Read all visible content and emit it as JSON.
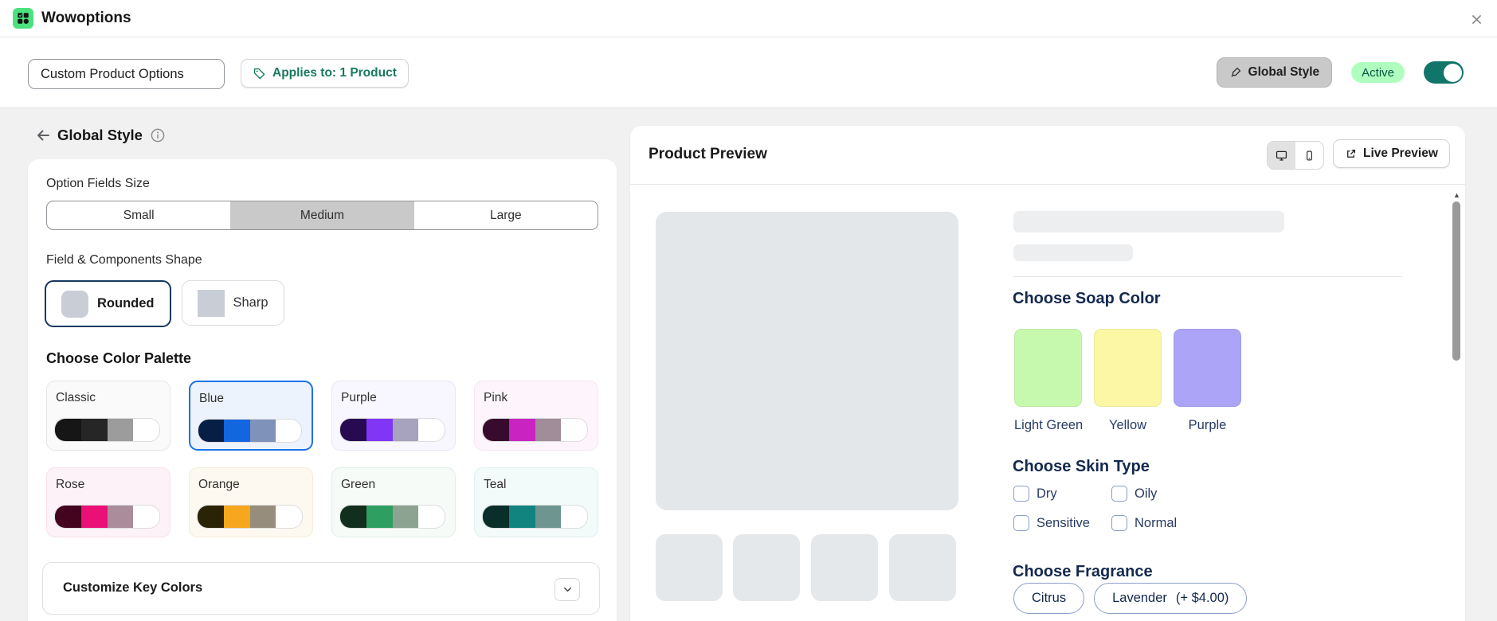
{
  "header": {
    "app_title": "Wowoptions"
  },
  "toolbar": {
    "option_set_name": "Custom Product Options",
    "applies_to_label": "Applies to: 1 Product",
    "global_style_label": "Global Style",
    "status_label": "Active",
    "toggle_on": true
  },
  "style_panel": {
    "title": "Global Style",
    "size": {
      "label": "Option Fields Size",
      "options": [
        "Small",
        "Medium",
        "Large"
      ],
      "selected": "Medium"
    },
    "shape": {
      "label": "Field & Components Shape",
      "options": [
        {
          "name": "Rounded",
          "selected": true
        },
        {
          "name": "Sharp",
          "selected": false
        }
      ]
    },
    "palette": {
      "label": "Choose Color Palette",
      "selected": "Blue",
      "options": [
        {
          "name": "Classic",
          "selected": false,
          "bg": "#fafafa",
          "border": "#e5e5e5",
          "colors": [
            "#161616",
            "#262626",
            "#9c9c9c",
            "#ffffff"
          ]
        },
        {
          "name": "Blue",
          "selected": true,
          "bg": "#edf3fc",
          "border": "#1b72e8",
          "colors": [
            "#071f45",
            "#1465e0",
            "#7e92ba",
            "#ffffff"
          ]
        },
        {
          "name": "Purple",
          "selected": false,
          "bg": "#f8f6fe",
          "border": "#eae4f9",
          "colors": [
            "#270a52",
            "#8136f6",
            "#a7a2bd",
            "#ffffff"
          ]
        },
        {
          "name": "Pink",
          "selected": false,
          "bg": "#fdf5fb",
          "border": "#f7e5f4",
          "colors": [
            "#380b2e",
            "#c924c2",
            "#a18c99",
            "#ffffff"
          ]
        },
        {
          "name": "Rose",
          "selected": false,
          "bg": "#fdf2f7",
          "border": "#f8dfeb",
          "colors": [
            "#44041f",
            "#eb1076",
            "#aa8c9b",
            "#ffffff"
          ]
        },
        {
          "name": "Orange",
          "selected": false,
          "bg": "#fdf9f0",
          "border": "#f4ecd9",
          "colors": [
            "#2a2306",
            "#f6a71e",
            "#978d7c",
            "#ffffff"
          ]
        },
        {
          "name": "Green",
          "selected": false,
          "bg": "#f6fbf7",
          "border": "#e2eee5",
          "colors": [
            "#122f1d",
            "#2f9f61",
            "#8ca391",
            "#ffffff"
          ]
        },
        {
          "name": "Teal",
          "selected": false,
          "bg": "#f2fafa",
          "border": "#dff0ef",
          "colors": [
            "#0a2e2a",
            "#128480",
            "#6f9591",
            "#ffffff"
          ]
        }
      ]
    },
    "key_colors_label": "Customize Key Colors"
  },
  "preview": {
    "title": "Product Preview",
    "device_selected": "desktop",
    "live_preview_label": "Live Preview",
    "soap": {
      "label": "Choose Soap Color",
      "options": [
        {
          "name": "Light Green",
          "color": "#c6f8ae"
        },
        {
          "name": "Yellow",
          "color": "#fbf7a5"
        },
        {
          "name": "Purple",
          "color": "#aba4f7"
        }
      ]
    },
    "skin": {
      "label": "Choose Skin Type",
      "options": [
        {
          "name": "Dry",
          "checked": false
        },
        {
          "name": "Oily",
          "checked": false
        },
        {
          "name": "Sensitive",
          "checked": false
        },
        {
          "name": "Normal",
          "checked": false
        }
      ]
    },
    "fragrance": {
      "label": "Choose Fragrance",
      "options": [
        {
          "name": "Citrus",
          "price": ""
        },
        {
          "name": "Lavender",
          "price": "(+ $4.00)"
        }
      ]
    },
    "thumbnail_count": 4
  },
  "colors": {
    "accent_toggle": "#117569",
    "badge_bg": "#affebf",
    "badge_text": "#04553f",
    "selected_blue": "#1b72e8",
    "selected_navy": "#16375f",
    "preview_text_navy": "#13294e"
  }
}
